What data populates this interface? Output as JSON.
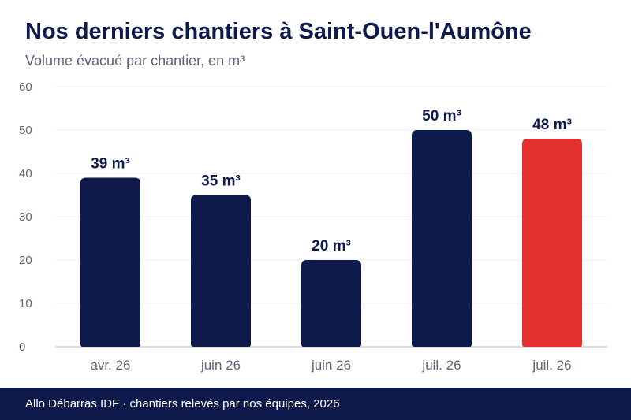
{
  "header": {
    "title": "Nos derniers chantiers à Saint-Ouen-l'Aumône",
    "subtitle": "Volume évacué par chantier, en m³"
  },
  "chart_data": {
    "type": "bar",
    "title": "Nos derniers chantiers à Saint-Ouen-l'Aumône",
    "subtitle": "Volume évacué par chantier, en m³",
    "categories": [
      "avr. 26",
      "juin 26",
      "juin 26",
      "juil. 26",
      "juil. 26"
    ],
    "values": [
      39,
      35,
      20,
      50,
      48
    ],
    "value_labels": [
      "39 m³",
      "35 m³",
      "20 m³",
      "50 m³",
      "48 m³"
    ],
    "ylim": [
      0,
      60
    ],
    "yticks": [
      0,
      10,
      20,
      30,
      40,
      50,
      60
    ],
    "grid": true,
    "legend": "none",
    "colors": {
      "default": "#0e1a4b",
      "highlight": "#e3302f",
      "highlight_index": 4
    }
  },
  "footer": {
    "text": "Allo Débarras IDF · chantiers relevés par nos équipes, 2026"
  }
}
